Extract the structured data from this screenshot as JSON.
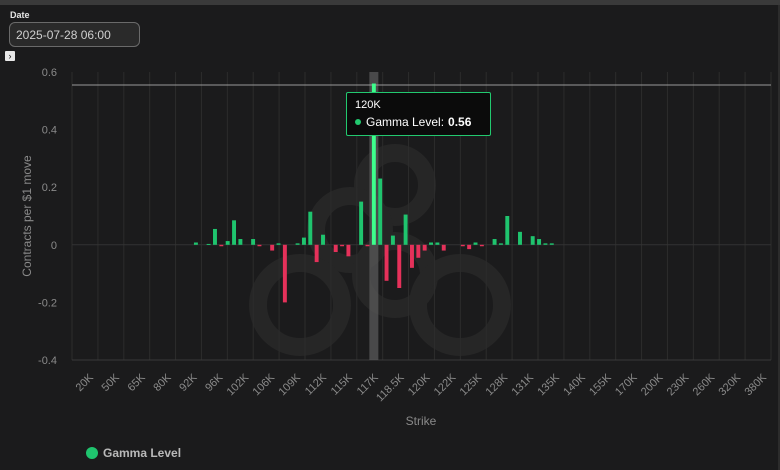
{
  "date_field": {
    "label": "Date",
    "value": "2025-07-28 06:00"
  },
  "expand_icon": "chevron-right-icon",
  "colors": {
    "positive": "#1fc46e",
    "negative": "#e5315a",
    "highlight": "#3dff8c",
    "background": "#1b1b1c"
  },
  "chart_data": {
    "type": "bar",
    "xlabel": "Strike",
    "ylabel": "Contracts per $1 move",
    "ylim": [
      -0.4,
      0.6
    ],
    "yticks": [
      "0.6",
      "0.4",
      "0.2",
      "0",
      "-0.2",
      "-0.4"
    ],
    "yticks_values": [
      0.6,
      0.4,
      0.2,
      0,
      -0.2,
      -0.4
    ],
    "xticks": [
      "20K",
      "50K",
      "65K",
      "80K",
      "92K",
      "96K",
      "102K",
      "106K",
      "109K",
      "112K",
      "115K",
      "117K",
      "118.5K",
      "120K",
      "122K",
      "125K",
      "128K",
      "131K",
      "135K",
      "140K",
      "155K",
      "170K",
      "200K",
      "230K",
      "260K",
      "320K",
      "380K"
    ],
    "reference_line": 0.555,
    "highlighted_category": "120K",
    "series": [
      {
        "name": "Gamma Level",
        "values": [
          0,
          0,
          0,
          0,
          0,
          0,
          0,
          0,
          0,
          0,
          0,
          0,
          0,
          0,
          0,
          0,
          0,
          0,
          0,
          0.008,
          0,
          0.003,
          0.055,
          -0.005,
          0.013,
          0.085,
          0.02,
          0,
          0.02,
          -0.005,
          0,
          -0.02,
          0.005,
          -0.2,
          0,
          0.005,
          0.025,
          0.115,
          -0.06,
          0.035,
          0,
          -0.025,
          -0.005,
          -0.04,
          0,
          0.15,
          -0.005,
          0.56,
          0.23,
          -0.125,
          0.032,
          -0.15,
          0.105,
          -0.08,
          -0.045,
          -0.02,
          0.008,
          0.008,
          -0.02,
          0,
          0,
          -0.005,
          -0.015,
          0.008,
          -0.005,
          0,
          0.02,
          0.005,
          0.1,
          0,
          0.045,
          0,
          0.03,
          0.02,
          0.005,
          0.005,
          0,
          0,
          0,
          0,
          0,
          0,
          0,
          0,
          0,
          0,
          0,
          0,
          0,
          0,
          0,
          0,
          0,
          0,
          0,
          0,
          0,
          0,
          0,
          0,
          0,
          0,
          0,
          0,
          0,
          0,
          0,
          0,
          0,
          0
        ]
      }
    ]
  },
  "tooltip": {
    "title": "120K",
    "series_label": "Gamma Level:",
    "value": "0.56"
  },
  "legend": {
    "label": "Gamma Level"
  }
}
